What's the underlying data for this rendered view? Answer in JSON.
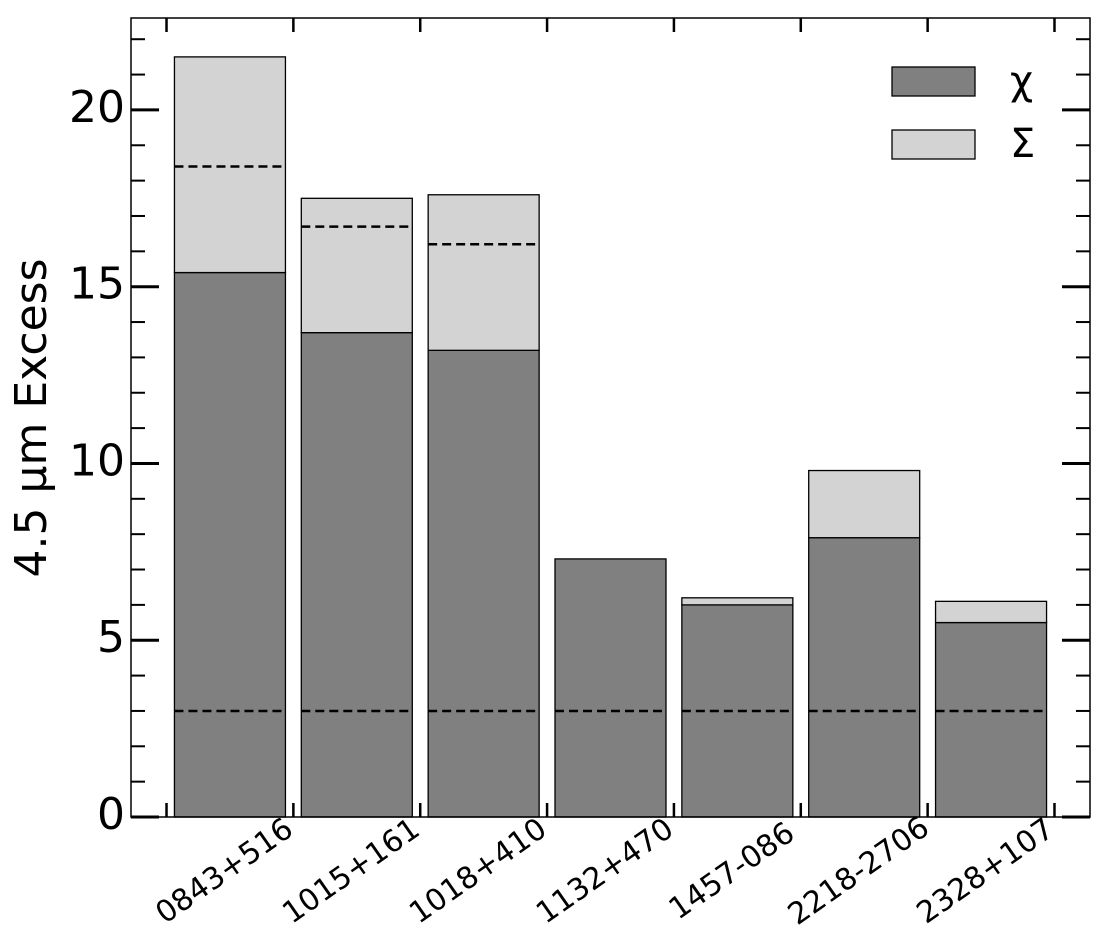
{
  "chart_data": {
    "type": "bar",
    "stacked": true,
    "ylabel": "4.5 μm Excess",
    "categories": [
      "0843+516",
      "1015+161",
      "1018+410",
      "1132+470",
      "1457-086",
      "2218-2706",
      "2328+107"
    ],
    "series": [
      {
        "name": "χ",
        "color": "#808080",
        "values": [
          15.4,
          13.7,
          13.2,
          7.3,
          6.0,
          7.9,
          5.5
        ]
      },
      {
        "name": "Σ",
        "color": "#d3d3d3",
        "values": [
          6.1,
          3.8,
          4.4,
          0,
          0.2,
          1.9,
          0.6
        ]
      }
    ],
    "threshold": 3,
    "dashed_levels": [
      18.4,
      16.7,
      16.2,
      null,
      null,
      null,
      null
    ],
    "ylim": [
      0,
      22.6
    ],
    "yticks": [
      0,
      5,
      10,
      15,
      20
    ],
    "yminor_ticks": [
      1,
      2,
      3,
      4,
      6,
      7,
      8,
      9,
      11,
      12,
      13,
      14,
      16,
      17,
      18,
      19,
      21,
      22
    ],
    "legend": "upper right"
  }
}
